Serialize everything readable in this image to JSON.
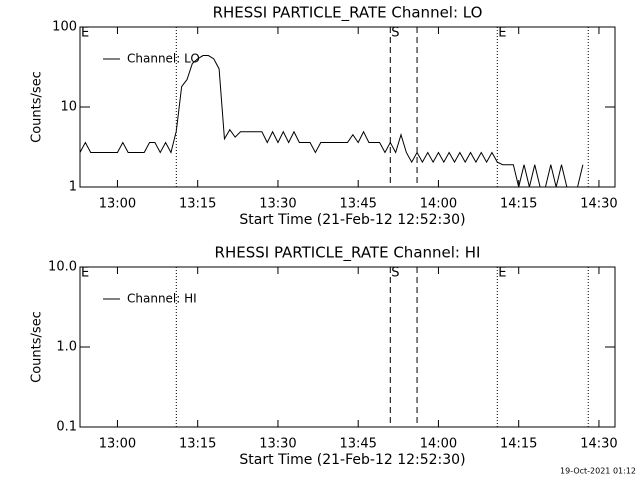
{
  "chart_data": [
    {
      "type": "line",
      "title": "RHESSI PARTICLE_RATE Channel: LO",
      "x_label": "Start Time (21-Feb-12 12:52:30)",
      "y_label": "Counts/sec",
      "log_y": true,
      "legend": "upper left",
      "xlim": [
        "12:53",
        "14:33"
      ],
      "xticks": [
        "13:00",
        "13:15",
        "13:30",
        "13:45",
        "14:00",
        "14:15",
        "14:30"
      ],
      "ylim": [
        1,
        100
      ],
      "yticks": [
        1,
        10,
        100
      ],
      "x": [
        "12:53",
        "12:54",
        "12:55",
        "12:56",
        "12:57",
        "12:58",
        "12:59",
        "13:00",
        "13:01",
        "13:02",
        "13:03",
        "13:04",
        "13:05",
        "13:06",
        "13:07",
        "13:08",
        "13:09",
        "13:10",
        "13:11",
        "13:12",
        "13:13",
        "13:14",
        "13:15",
        "13:16",
        "13:17",
        "13:18",
        "13:19",
        "13:20",
        "13:21",
        "13:22",
        "13:23",
        "13:24",
        "13:25",
        "13:26",
        "13:27",
        "13:28",
        "13:29",
        "13:30",
        "13:31",
        "13:32",
        "13:33",
        "13:34",
        "13:35",
        "13:36",
        "13:37",
        "13:38",
        "13:39",
        "13:40",
        "13:41",
        "13:42",
        "13:43",
        "13:44",
        "13:45",
        "13:46",
        "13:47",
        "13:48",
        "13:49",
        "13:50",
        "13:51",
        "13:52",
        "13:53",
        "13:54",
        "13:55",
        "13:56",
        "13:57",
        "13:58",
        "13:59",
        "14:00",
        "14:01",
        "14:02",
        "14:03",
        "14:04",
        "14:05",
        "14:06",
        "14:07",
        "14:08",
        "14:09",
        "14:10",
        "14:11",
        "14:12",
        "14:13",
        "14:14",
        "14:15",
        "14:16",
        "14:17",
        "14:18",
        "14:19",
        "14:20",
        "14:21",
        "14:22",
        "14:23",
        "14:24",
        "14:25",
        "14:26",
        "14:27"
      ],
      "series": [
        {
          "name": "Channel: LO",
          "color": "#000000",
          "values": [
            2.7,
            3.6,
            2.7,
            2.7,
            2.7,
            2.7,
            2.7,
            2.7,
            3.6,
            2.7,
            2.7,
            2.7,
            2.7,
            3.6,
            3.6,
            2.7,
            3.6,
            2.7,
            5,
            18,
            22,
            35,
            40,
            44,
            44,
            40,
            30,
            4,
            5.2,
            4.2,
            4.9,
            4.9,
            4.9,
            4.9,
            4.9,
            3.6,
            4.9,
            3.6,
            4.9,
            3.6,
            4.9,
            3.6,
            3.6,
            3.6,
            2.7,
            3.6,
            3.6,
            3.6,
            3.6,
            3.6,
            3.6,
            4.5,
            3.6,
            4.9,
            3.6,
            3.6,
            3.6,
            2.7,
            3.6,
            2.7,
            4.5,
            2.7,
            2.05,
            2.7,
            2.05,
            2.7,
            2.05,
            2.7,
            2.05,
            2.7,
            2.05,
            2.7,
            2.05,
            2.7,
            2.05,
            2.7,
            2.05,
            2.7,
            2.05,
            1.9,
            1.9,
            1.9,
            1,
            1.9,
            1,
            1.9,
            1,
            1,
            1.9,
            1,
            1.9,
            1,
            1,
            1,
            1.9
          ]
        }
      ],
      "markers": [
        {
          "label": "E",
          "x": "12:53"
        },
        {
          "label": "S",
          "x": "13:51"
        },
        {
          "label": "E",
          "x": "14:11"
        }
      ],
      "lines": [
        {
          "x": "13:11",
          "style": "dotted"
        },
        {
          "x": "13:51",
          "style": "dashed"
        },
        {
          "x": "13:56",
          "style": "dashed"
        },
        {
          "x": "14:11",
          "style": "dotted"
        },
        {
          "x": "14:28",
          "style": "dotted"
        }
      ]
    },
    {
      "type": "line",
      "title": "RHESSI PARTICLE_RATE Channel: HI",
      "x_label": "Start Time (21-Feb-12 12:52:30)",
      "y_label": "Counts/sec",
      "log_y": true,
      "legend": "upper left",
      "xlim": [
        "12:53",
        "14:33"
      ],
      "xticks": [
        "13:00",
        "13:15",
        "13:30",
        "13:45",
        "14:00",
        "14:15",
        "14:30"
      ],
      "ylim": [
        0.1,
        10
      ],
      "yticks": [
        0.1,
        {
          "value": 1,
          "label": "1.0"
        },
        {
          "value": 10,
          "label": "10.0"
        }
      ],
      "x": [],
      "series": [
        {
          "name": "Channel: HI",
          "color": "#000000",
          "values": []
        }
      ],
      "markers": [
        {
          "label": "E",
          "x": "12:53"
        },
        {
          "label": "S",
          "x": "13:51"
        },
        {
          "label": "E",
          "x": "14:11"
        }
      ],
      "lines": [
        {
          "x": "13:11",
          "style": "dotted"
        },
        {
          "x": "13:51",
          "style": "dashed"
        },
        {
          "x": "13:56",
          "style": "dashed"
        },
        {
          "x": "14:11",
          "style": "dotted"
        },
        {
          "x": "14:28",
          "style": "dotted"
        }
      ]
    }
  ],
  "footer": "19-Oct-2021 01:12"
}
